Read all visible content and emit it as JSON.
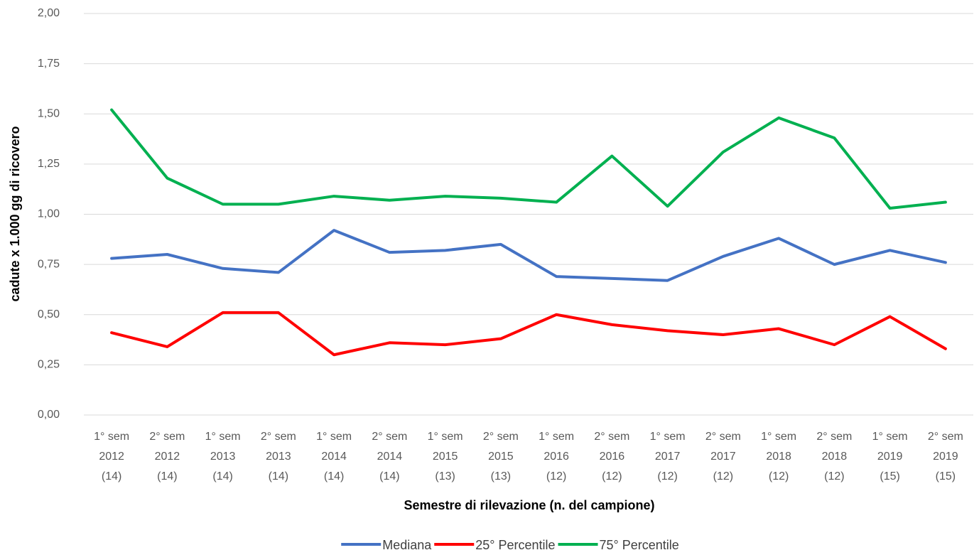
{
  "chart_data": {
    "type": "line",
    "x_label": "Semestre di rilevazione (n. del campione)",
    "y_label": "cadute x 1.000 gg di ricovero",
    "categories": [
      [
        "1° sem",
        "2012",
        "(14)"
      ],
      [
        "2° sem",
        "2012",
        "(14)"
      ],
      [
        "1° sem",
        "2013",
        "(14)"
      ],
      [
        "2° sem",
        "2013",
        "(14)"
      ],
      [
        "1° sem",
        "2014",
        "(14)"
      ],
      [
        "2° sem",
        "2014",
        "(14)"
      ],
      [
        "1° sem",
        "2015",
        "(13)"
      ],
      [
        "2° sem",
        "2015",
        "(13)"
      ],
      [
        "1° sem",
        "2016",
        "(12)"
      ],
      [
        "2° sem",
        "2016",
        "(12)"
      ],
      [
        "1° sem",
        "2017",
        "(12)"
      ],
      [
        "2° sem",
        "2017",
        "(12)"
      ],
      [
        "1° sem",
        "2018",
        "(12)"
      ],
      [
        "2° sem",
        "2018",
        "(12)"
      ],
      [
        "1° sem",
        "2019",
        "(15)"
      ],
      [
        "2° sem",
        "2019",
        "(15)"
      ]
    ],
    "series": [
      {
        "name": "Mediana",
        "color": "#4472c4",
        "values": [
          0.78,
          0.8,
          0.73,
          0.71,
          0.92,
          0.81,
          0.82,
          0.85,
          0.69,
          0.68,
          0.67,
          0.79,
          0.88,
          0.75,
          0.82,
          0.76
        ]
      },
      {
        "name": "25° Percentile",
        "color": "#ff0000",
        "values": [
          0.41,
          0.34,
          0.51,
          0.51,
          0.3,
          0.36,
          0.35,
          0.38,
          0.5,
          0.45,
          0.42,
          0.4,
          0.43,
          0.35,
          0.49,
          0.33
        ]
      },
      {
        "name": "75° Percentile",
        "color": "#00b050",
        "values": [
          1.52,
          1.18,
          1.05,
          1.05,
          1.09,
          1.07,
          1.09,
          1.08,
          1.06,
          1.29,
          1.04,
          1.31,
          1.48,
          1.38,
          1.03,
          1.06
        ]
      }
    ],
    "ylim": [
      0,
      2
    ],
    "yticks": [
      {
        "value": 0,
        "label": "0,00"
      },
      {
        "value": 0.25,
        "label": "0,25"
      },
      {
        "value": 0.5,
        "label": "0,50"
      },
      {
        "value": 0.75,
        "label": "0,75"
      },
      {
        "value": 1,
        "label": "1,00"
      },
      {
        "value": 1.25,
        "label": "1,25"
      },
      {
        "value": 1.5,
        "label": "1,50"
      },
      {
        "value": 1.75,
        "label": "1,75"
      },
      {
        "value": 2,
        "label": "2,00"
      }
    ],
    "grid": true,
    "legend": "bottom"
  }
}
